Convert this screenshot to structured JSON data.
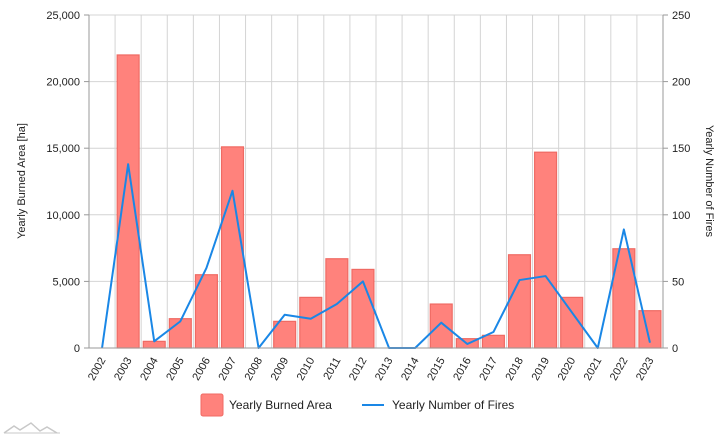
{
  "chart_data": {
    "type": "bar",
    "categories": [
      "2002",
      "2003",
      "2004",
      "2005",
      "2006",
      "2007",
      "2008",
      "2009",
      "2010",
      "2011",
      "2012",
      "2013",
      "2014",
      "2015",
      "2016",
      "2017",
      "2018",
      "2019",
      "2020",
      "2021",
      "2022",
      "2023"
    ],
    "series": [
      {
        "name": "Yearly Burned Area",
        "type": "bar",
        "axis": "left",
        "color": "#ff827c",
        "values": [
          0,
          22000,
          500,
          2200,
          5500,
          15100,
          0,
          2000,
          3800,
          6700,
          5900,
          0,
          0,
          3300,
          700,
          950,
          7000,
          14700,
          3800,
          0,
          7450,
          2800
        ]
      },
      {
        "name": "Yearly Number of Fires",
        "type": "line",
        "axis": "right",
        "color": "#1a87e6",
        "values": [
          0,
          138,
          5,
          20,
          60,
          118,
          0,
          25,
          22,
          33,
          50,
          0,
          0,
          19,
          3,
          12,
          51,
          54,
          27,
          0,
          89,
          4
        ]
      }
    ],
    "ylabel": "Yearly Burned Area [ha]",
    "y2label": "Yearly Number of Fires",
    "ylim": [
      0,
      25000
    ],
    "y2lim": [
      0,
      250
    ],
    "yticks": [
      "0",
      "5,000",
      "10,000",
      "15,000",
      "20,000",
      "25,000"
    ],
    "y2ticks": [
      "0",
      "50",
      "100",
      "150",
      "200",
      "250"
    ],
    "grid": true,
    "legend": "bottom-center"
  },
  "logo": {
    "icon": "mountain-logo-icon"
  }
}
